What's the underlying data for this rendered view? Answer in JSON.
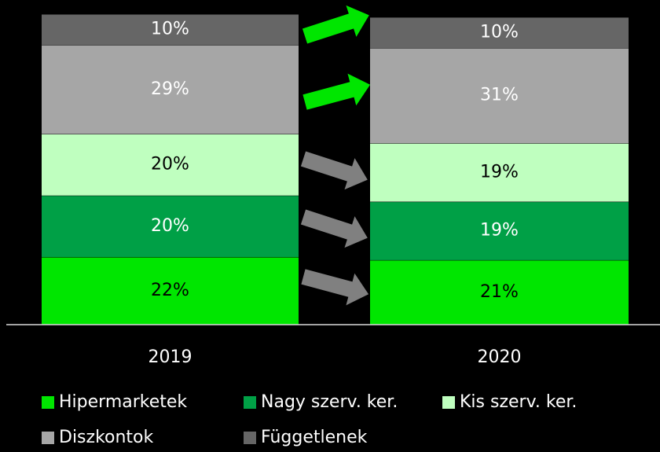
{
  "chart_data": {
    "type": "stacked_bar",
    "categories": [
      "2019",
      "2020"
    ],
    "ylim": [
      0,
      101
    ],
    "legend": "bottom",
    "series": [
      {
        "name": "Hipermarketek",
        "color": "#00e600",
        "label_color": "#000000",
        "values": [
          22,
          21
        ],
        "value_labels": [
          "22%",
          "21%"
        ]
      },
      {
        "name": "Nagy szerv. ker.",
        "color": "#00a046",
        "label_color": "#ffffff",
        "values": [
          20,
          19
        ],
        "value_labels": [
          "20%",
          "19%"
        ]
      },
      {
        "name": "Kis szerv. ker.",
        "color": "#bfffbf",
        "label_color": "#000000",
        "values": [
          20,
          19
        ],
        "value_labels": [
          "20%",
          "19%"
        ]
      },
      {
        "name": "Diszkontok",
        "color": "#a6a6a6",
        "label_color": "#ffffff",
        "values": [
          29,
          31
        ],
        "value_labels": [
          "29%",
          "31%"
        ]
      },
      {
        "name": "Függetlenek",
        "color": "#666666",
        "label_color": "#ffffff",
        "values": [
          10,
          10
        ],
        "value_labels": [
          "10%",
          "10%"
        ]
      }
    ]
  }
}
